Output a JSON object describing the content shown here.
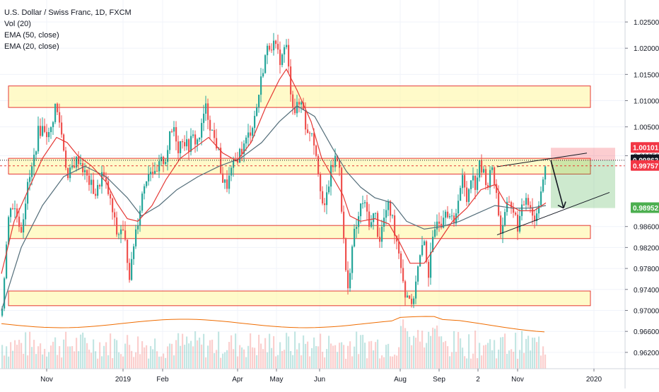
{
  "chart_data": {
    "type": "candlestick",
    "legend": [
      "U.S. Dollar / Swiss Franc, 1D, FXCM",
      "Vol (20)",
      "EMA (50, close)",
      "EMA (20, close)"
    ],
    "y_axis_ticks": [
      "1.02500",
      "1.02000",
      "1.01500",
      "1.01000",
      "1.00500",
      "0.99950",
      "0.98600",
      "0.98200",
      "0.97800",
      "0.97400",
      "0.97000",
      "0.96600",
      "0.96200"
    ],
    "ylim": [
      0.9601,
      1.0269
    ],
    "x_axis_ticks": [
      {
        "label": "Nov",
        "x": 66
      },
      {
        "label": "2019",
        "x": 174
      },
      {
        "label": "Feb",
        "x": 230
      },
      {
        "label": "Apr",
        "x": 336
      },
      {
        "label": "May",
        "x": 391
      },
      {
        "label": "Jun",
        "x": 452
      },
      {
        "label": "Aug",
        "x": 566
      },
      {
        "label": "Sep",
        "x": 621
      },
      {
        "label": "2",
        "x": 676
      },
      {
        "label": "Nov",
        "x": 732
      },
      {
        "label": "2020",
        "x": 840
      }
    ],
    "price_tags": [
      {
        "label": "1.00101",
        "value": 1.00101,
        "bg": "#f23645",
        "fg": "#ffffff"
      },
      {
        "label": "0.99863",
        "value": 0.99863,
        "bg": "#131722",
        "fg": "#ffffff"
      },
      {
        "label": "0.99757",
        "value": 0.99757,
        "bg": "#f23645",
        "fg": "#ffffff"
      },
      {
        "label": "0.98952",
        "value": 0.98952,
        "bg": "#4caf50",
        "fg": "#ffffff"
      }
    ],
    "zones": [
      {
        "top": 1.0128,
        "bottom": 1.0087
      },
      {
        "top": 0.999,
        "bottom": 0.996
      },
      {
        "top": 0.9862,
        "bottom": 0.9837
      },
      {
        "top": 0.9737,
        "bottom": 0.9709
      }
    ],
    "position": {
      "x_start": 779,
      "x_end": 870,
      "entry": 0.99863,
      "stop": 1.00101,
      "target": 0.98952
    },
    "current_price_line": 0.99863,
    "dashed_price_line": 0.99757,
    "price_path": [
      [
        2,
        0.969
      ],
      [
        8,
        0.981
      ],
      [
        14,
        0.9905
      ],
      [
        22,
        0.989
      ],
      [
        30,
        0.9855
      ],
      [
        38,
        0.993
      ],
      [
        46,
        0.9975
      ],
      [
        54,
        1.004
      ],
      [
        62,
        1.005
      ],
      [
        70,
        1.003
      ],
      [
        78,
        1.009
      ],
      [
        84,
        1.006
      ],
      [
        90,
        1.001
      ],
      [
        96,
        0.995
      ],
      [
        104,
        0.998
      ],
      [
        112,
        0.999
      ],
      [
        120,
        0.996
      ],
      [
        128,
        0.994
      ],
      [
        136,
        0.992
      ],
      [
        144,
        0.996
      ],
      [
        152,
        0.993
      ],
      [
        160,
        0.988
      ],
      [
        166,
        0.984
      ],
      [
        172,
        0.986
      ],
      [
        178,
        0.982
      ],
      [
        184,
        0.976
      ],
      [
        190,
        0.984
      ],
      [
        196,
        0.988
      ],
      [
        202,
        0.993
      ],
      [
        208,
        0.996
      ],
      [
        214,
        0.9975
      ],
      [
        220,
        0.995
      ],
      [
        226,
        0.998
      ],
      [
        234,
        0.999
      ],
      [
        240,
        1.003
      ],
      [
        246,
        1.005
      ],
      [
        252,
        1.001
      ],
      [
        258,
        1.003
      ],
      [
        266,
        1.001
      ],
      [
        272,
        1.003
      ],
      [
        278,
        1.002
      ],
      [
        284,
        1.004
      ],
      [
        290,
        1.009
      ],
      [
        296,
        1.006
      ],
      [
        302,
        1.003
      ],
      [
        308,
        1.001
      ],
      [
        314,
        0.995
      ],
      [
        320,
        0.9935
      ],
      [
        326,
        0.996
      ],
      [
        332,
        0.998
      ],
      [
        338,
        1.0
      ],
      [
        344,
        1.001
      ],
      [
        350,
        1.003
      ],
      [
        356,
        1.005
      ],
      [
        362,
        1.008
      ],
      [
        368,
        1.013
      ],
      [
        374,
        1.018
      ],
      [
        380,
        1.0205
      ],
      [
        386,
        1.021
      ],
      [
        392,
        1.019
      ],
      [
        398,
        1.0175
      ],
      [
        404,
        1.0215
      ],
      [
        410,
        1.013
      ],
      [
        416,
        1.008
      ],
      [
        422,
        1.009
      ],
      [
        428,
        1.01
      ],
      [
        434,
        1.003
      ],
      [
        440,
        1.005
      ],
      [
        446,
        1.001
      ],
      [
        452,
        0.995
      ],
      [
        458,
        0.988
      ],
      [
        462,
        0.992
      ],
      [
        468,
        0.9965
      ],
      [
        474,
        0.999
      ],
      [
        480,
        0.998
      ],
      [
        484,
        0.987
      ],
      [
        488,
        0.979
      ],
      [
        492,
        0.9735
      ],
      [
        496,
        0.98
      ],
      [
        500,
        0.984
      ],
      [
        506,
        0.987
      ],
      [
        512,
        0.991
      ],
      [
        518,
        0.989
      ],
      [
        524,
        0.986
      ],
      [
        530,
        0.989
      ],
      [
        536,
        0.983
      ],
      [
        542,
        0.987
      ],
      [
        548,
        0.99
      ],
      [
        554,
        0.988
      ],
      [
        560,
        0.984
      ],
      [
        566,
        0.98
      ],
      [
        570,
        0.976
      ],
      [
        574,
        0.972
      ],
      [
        578,
        0.974
      ],
      [
        582,
        0.97
      ],
      [
        588,
        0.976
      ],
      [
        594,
        0.98
      ],
      [
        600,
        0.983
      ],
      [
        606,
        0.977
      ],
      [
        612,
        0.983
      ],
      [
        618,
        0.988
      ],
      [
        624,
        0.987
      ],
      [
        630,
        0.99
      ],
      [
        636,
        0.988
      ],
      [
        642,
        0.986
      ],
      [
        648,
        0.992
      ],
      [
        654,
        0.995
      ],
      [
        660,
        0.991
      ],
      [
        666,
        0.996
      ],
      [
        672,
        0.994
      ],
      [
        678,
        0.9975
      ],
      [
        684,
        0.996
      ],
      [
        690,
        0.994
      ],
      [
        696,
        0.9975
      ],
      [
        700,
        0.994
      ],
      [
        704,
        0.99
      ],
      [
        708,
        0.985
      ],
      [
        714,
        0.988
      ],
      [
        720,
        0.991
      ],
      [
        726,
        0.989
      ],
      [
        732,
        0.986
      ],
      [
        738,
        0.989
      ],
      [
        744,
        0.992
      ],
      [
        750,
        0.99
      ],
      [
        756,
        0.987
      ],
      [
        762,
        0.991
      ],
      [
        768,
        0.995
      ],
      [
        772,
        0.997
      ]
    ],
    "ema20_path": [
      [
        2,
        0.977
      ],
      [
        20,
        0.987
      ],
      [
        40,
        0.993
      ],
      [
        60,
        0.999
      ],
      [
        80,
        1.003
      ],
      [
        95,
        1.002
      ],
      [
        110,
        0.9995
      ],
      [
        130,
        0.9975
      ],
      [
        150,
        0.9945
      ],
      [
        165,
        0.9905
      ],
      [
        180,
        0.9875
      ],
      [
        195,
        0.987
      ],
      [
        215,
        0.99
      ],
      [
        235,
        0.995
      ],
      [
        255,
        0.999
      ],
      [
        275,
        1.001
      ],
      [
        295,
        1.003
      ],
      [
        315,
        1.0
      ],
      [
        335,
        0.9985
      ],
      [
        355,
        1.002
      ],
      [
        375,
        1.0085
      ],
      [
        395,
        1.014
      ],
      [
        405,
        1.016
      ],
      [
        420,
        1.012
      ],
      [
        440,
        1.006
      ],
      [
        455,
        0.999
      ],
      [
        470,
        0.9955
      ],
      [
        485,
        0.992
      ],
      [
        495,
        0.988
      ],
      [
        510,
        0.987
      ],
      [
        530,
        0.9875
      ],
      [
        550,
        0.9865
      ],
      [
        565,
        0.983
      ],
      [
        580,
        0.979
      ],
      [
        600,
        0.979
      ],
      [
        620,
        0.983
      ],
      [
        640,
        0.987
      ],
      [
        660,
        0.9895
      ],
      [
        680,
        0.993
      ],
      [
        700,
        0.994
      ],
      [
        715,
        0.9905
      ],
      [
        735,
        0.989
      ],
      [
        755,
        0.989
      ],
      [
        772,
        0.9905
      ]
    ],
    "ema50_path": [
      [
        2,
        0.97
      ],
      [
        30,
        0.982
      ],
      [
        60,
        0.99
      ],
      [
        90,
        0.9955
      ],
      [
        120,
        0.9975
      ],
      [
        150,
        0.9955
      ],
      [
        180,
        0.9915
      ],
      [
        200,
        0.988
      ],
      [
        225,
        0.99
      ],
      [
        250,
        0.993
      ],
      [
        280,
        0.9955
      ],
      [
        310,
        0.9975
      ],
      [
        340,
        0.999
      ],
      [
        370,
        1.002
      ],
      [
        395,
        1.006
      ],
      [
        420,
        1.009
      ],
      [
        445,
        1.007
      ],
      [
        470,
        1.001
      ],
      [
        490,
        0.9965
      ],
      [
        510,
        0.9935
      ],
      [
        530,
        0.9915
      ],
      [
        555,
        0.9905
      ],
      [
        575,
        0.987
      ],
      [
        600,
        0.9855
      ],
      [
        625,
        0.986
      ],
      [
        650,
        0.987
      ],
      [
        675,
        0.9885
      ],
      [
        700,
        0.99
      ],
      [
        725,
        0.9895
      ],
      [
        750,
        0.9895
      ],
      [
        772,
        0.99
      ]
    ],
    "wedge_lines": [
      {
        "x1": 703,
        "y1": 0.9974,
        "x2": 830,
        "y2": 1.0
      },
      {
        "x1": 703,
        "y1": 0.9844,
        "x2": 862,
        "y2": 0.9925
      }
    ],
    "projection_arrow": [
      [
        779,
        0.99863
      ],
      [
        797,
        0.98952
      ]
    ]
  }
}
